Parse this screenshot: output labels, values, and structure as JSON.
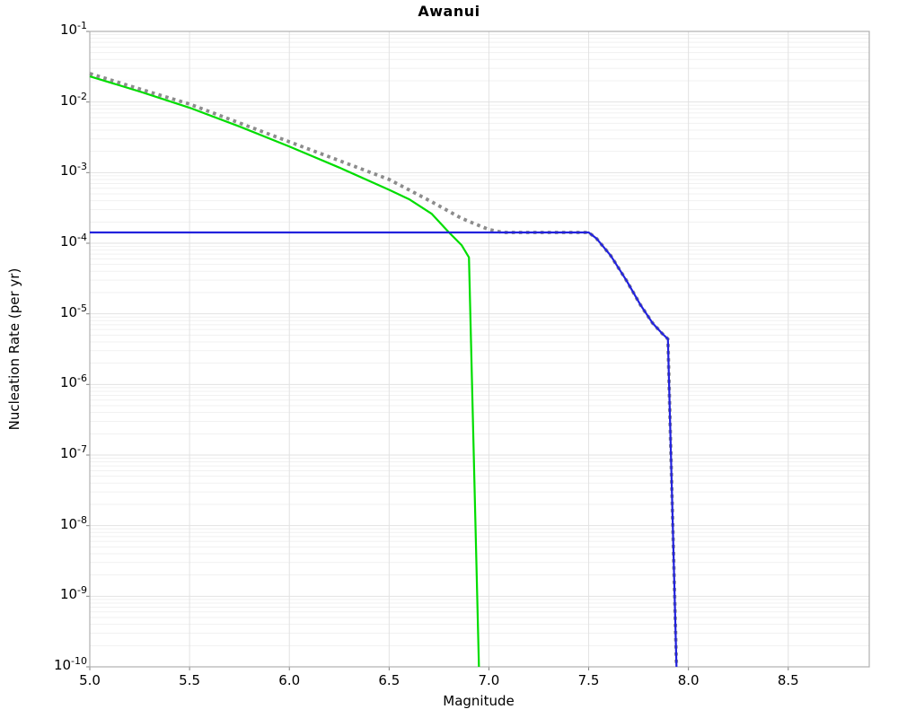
{
  "title": "Awanui",
  "axes": {
    "xlabel": "Magnitude",
    "ylabel": "Nucleation Rate (per yr)",
    "x_tick_labels": [
      "5.0",
      "5.5",
      "6.0",
      "6.5",
      "7.0",
      "7.5",
      "8.0",
      "8.5"
    ],
    "x_tick_values": [
      5.0,
      5.5,
      6.0,
      6.5,
      7.0,
      7.5,
      8.0,
      8.5
    ],
    "y_tick_base": "10",
    "y_tick_exponents": [
      "-1",
      "-2",
      "-3",
      "-4",
      "-5",
      "-6",
      "-7",
      "-8",
      "-9",
      "-10"
    ]
  },
  "chart_data": {
    "type": "line",
    "title": "Awanui",
    "xlabel": "Magnitude",
    "ylabel": "Nucleation Rate (per yr)",
    "xlim": [
      5.0,
      8.906
    ],
    "ylim": [
      1e-10,
      0.1
    ],
    "y_scale": "log",
    "grid": true,
    "legend": "none",
    "colors": {
      "grid_minor": "#f1f1f1",
      "grid_major": "#e2e2e2",
      "frame": "#b0b0b0",
      "tick": "#808080"
    },
    "series": [
      {
        "name": "tapered-rate-curve",
        "color": "#00dd00",
        "style": "solid",
        "width": 2.2,
        "points": [
          [
            5.0,
            0.0231
          ],
          [
            5.25,
            0.0141
          ],
          [
            5.5,
            0.0083
          ],
          [
            5.75,
            0.0045
          ],
          [
            6.0,
            0.00234
          ],
          [
            6.25,
            0.00118
          ],
          [
            6.5,
            0.00057
          ],
          [
            6.6,
            0.00042
          ],
          [
            6.714,
            0.00026
          ],
          [
            6.8,
            0.000142
          ],
          [
            6.863,
            9.4e-05
          ],
          [
            6.9,
            6.3e-05
          ],
          [
            6.95,
            1e-10
          ]
        ]
      },
      {
        "name": "reference-dotted-curve",
        "color": "#8c8c8c",
        "style": "dotted",
        "width": 3.8,
        "points": [
          [
            5.0,
            0.0253
          ],
          [
            5.25,
            0.0153
          ],
          [
            5.5,
            0.00935
          ],
          [
            5.75,
            0.00505
          ],
          [
            6.0,
            0.00273
          ],
          [
            6.25,
            0.00148
          ],
          [
            6.5,
            0.0008
          ],
          [
            6.714,
            0.000385
          ],
          [
            6.863,
            0.000225
          ],
          [
            7.0,
            0.000156
          ],
          [
            7.07,
            0.000142
          ],
          [
            7.5,
            0.000142
          ],
          [
            7.54,
            0.000116
          ],
          [
            7.61,
            6.7e-05
          ],
          [
            7.69,
            2.94e-05
          ],
          [
            7.76,
            1.33e-05
          ],
          [
            7.82,
            7.4e-06
          ],
          [
            7.87,
            5.2e-06
          ],
          [
            7.897,
            4.4e-06
          ],
          [
            7.94,
            1e-10
          ]
        ]
      },
      {
        "name": "flat-rate-curve",
        "color": "#2222dd",
        "style": "solid",
        "width": 2.2,
        "points": [
          [
            5.0,
            0.000142
          ],
          [
            7.5,
            0.000142
          ],
          [
            7.54,
            0.000116
          ],
          [
            7.61,
            6.7e-05
          ],
          [
            7.69,
            2.94e-05
          ],
          [
            7.76,
            1.33e-05
          ],
          [
            7.82,
            7.4e-06
          ],
          [
            7.87,
            5.2e-06
          ],
          [
            7.897,
            4.4e-06
          ],
          [
            7.94,
            1e-10
          ]
        ]
      }
    ]
  }
}
